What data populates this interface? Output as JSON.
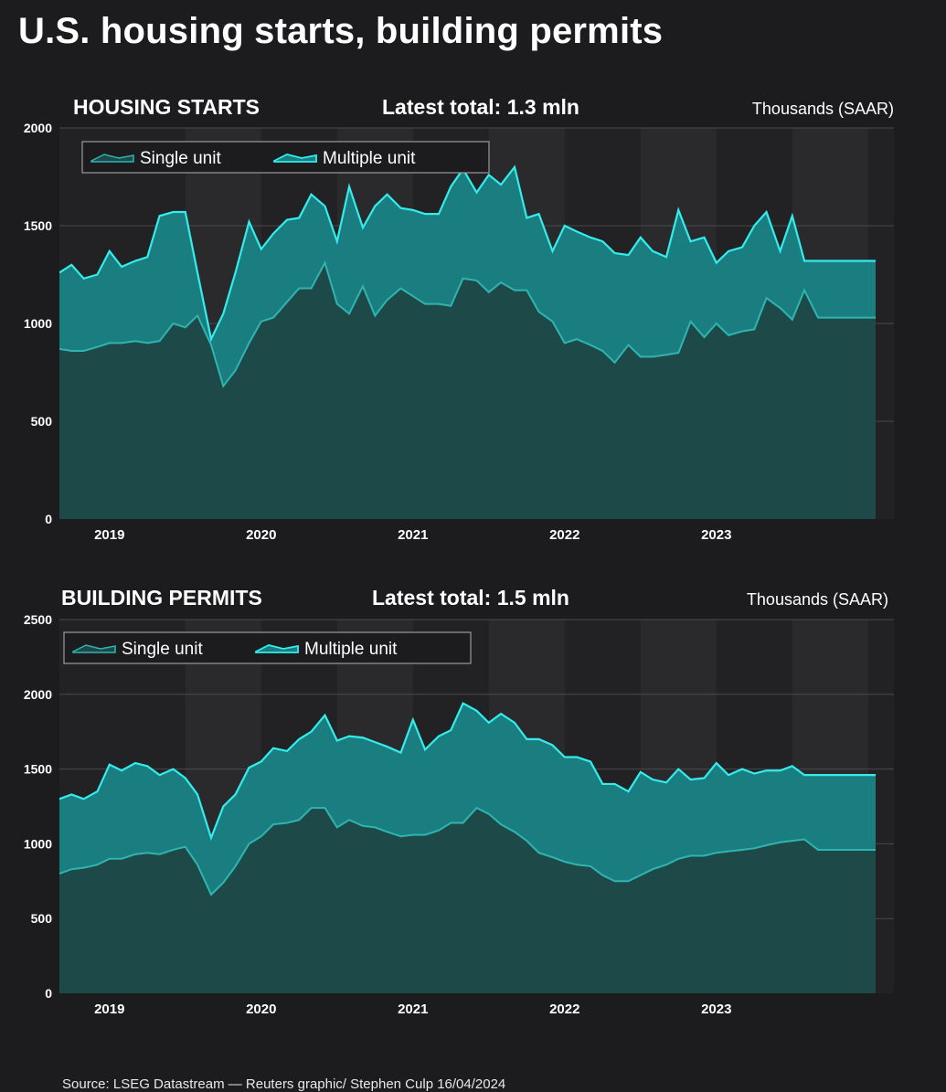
{
  "title": "U.S. housing starts, building permits",
  "source": "Source: LSEG Datastream — Reuters graphic/ Stephen Culp 16/04/2024",
  "colors": {
    "background": "#1c1c1e",
    "single_fill": "#1d4a49",
    "single_line": "#2fb5b0",
    "multiple_fill": "#1a7d80",
    "multiple_line": "#34ecec"
  },
  "chart_data": [
    {
      "type": "area",
      "title": "HOUSING STARTS",
      "subtitle": "Latest total: 1.3 mln",
      "unit_label": "Thousands (SAAR)",
      "ylim": [
        0,
        2000
      ],
      "yticks": [
        "0",
        "500",
        "1000",
        "1500",
        "2000"
      ],
      "x_tick_labels": [
        "2019",
        "2020",
        "2021",
        "2022",
        "2023"
      ],
      "x_range": [
        2018.67,
        2024.17
      ],
      "legend_position": "top-left",
      "grid": true,
      "x": [
        2018.67,
        2018.75,
        2018.83,
        2018.92,
        2019.0,
        2019.08,
        2019.17,
        2019.25,
        2019.33,
        2019.42,
        2019.5,
        2019.58,
        2019.67,
        2019.75,
        2019.83,
        2019.92,
        2020.0,
        2020.08,
        2020.17,
        2020.25,
        2020.33,
        2020.42,
        2020.5,
        2020.58,
        2020.67,
        2020.75,
        2020.83,
        2020.92,
        2021.0,
        2021.08,
        2021.17,
        2021.25,
        2021.33,
        2021.42,
        2021.5,
        2021.58,
        2021.67,
        2021.75,
        2021.83,
        2021.92,
        2022.0,
        2022.08,
        2022.17,
        2022.25,
        2022.33,
        2022.42,
        2022.5,
        2022.58,
        2022.67,
        2022.75,
        2022.83,
        2022.92,
        2023.0,
        2023.08,
        2023.17,
        2023.25,
        2023.33,
        2023.42,
        2023.5,
        2023.58,
        2023.67,
        2023.75,
        2023.83,
        2023.92,
        2024.0,
        2024.08,
        2024.17
      ],
      "series": [
        {
          "name": "Single unit",
          "values": [
            870,
            860,
            860,
            880,
            900,
            900,
            910,
            900,
            910,
            1000,
            980,
            1040,
            890,
            680,
            760,
            900,
            1010,
            1030,
            1110,
            1180,
            1180,
            1310,
            1100,
            1050,
            1190,
            1040,
            1120,
            1180,
            1140,
            1100,
            1100,
            1090,
            1230,
            1220,
            1160,
            1210,
            1170,
            1170,
            1060,
            1010,
            900,
            920,
            890,
            860,
            800,
            890,
            830,
            830,
            840,
            850,
            1010,
            930,
            1000,
            940,
            960,
            970,
            1130,
            1080,
            1020,
            1170,
            1030,
            1030,
            1030,
            1030,
            1030,
            1030,
            1030
          ]
        },
        {
          "name": "Multiple unit",
          "values": [
            1260,
            1300,
            1230,
            1250,
            1370,
            1290,
            1320,
            1340,
            1550,
            1570,
            1570,
            1260,
            920,
            1050,
            1260,
            1520,
            1380,
            1460,
            1530,
            1540,
            1660,
            1600,
            1420,
            1700,
            1490,
            1600,
            1660,
            1590,
            1580,
            1560,
            1560,
            1700,
            1790,
            1670,
            1760,
            1710,
            1800,
            1540,
            1560,
            1370,
            1500,
            1470,
            1440,
            1420,
            1360,
            1350,
            1440,
            1370,
            1340,
            1580,
            1420,
            1440,
            1310,
            1370,
            1390,
            1500,
            1570,
            1370,
            1550,
            1320,
            1320,
            1320,
            1320,
            1320,
            1320,
            1320,
            1320
          ]
        }
      ]
    },
    {
      "type": "area",
      "title": "BUILDING PERMITS",
      "subtitle": "Latest total: 1.5 mln",
      "unit_label": "Thousands (SAAR)",
      "ylim": [
        0,
        2500
      ],
      "yticks": [
        "0",
        "500",
        "1000",
        "1500",
        "2000",
        "2500"
      ],
      "x_tick_labels": [
        "2019",
        "2020",
        "2021",
        "2022",
        "2023"
      ],
      "x_range": [
        2018.67,
        2024.17
      ],
      "legend_position": "top-left",
      "grid": true,
      "x": [
        2018.67,
        2018.75,
        2018.83,
        2018.92,
        2019.0,
        2019.08,
        2019.17,
        2019.25,
        2019.33,
        2019.42,
        2019.5,
        2019.58,
        2019.67,
        2019.75,
        2019.83,
        2019.92,
        2020.0,
        2020.08,
        2020.17,
        2020.25,
        2020.33,
        2020.42,
        2020.5,
        2020.58,
        2020.67,
        2020.75,
        2020.83,
        2020.92,
        2021.0,
        2021.08,
        2021.17,
        2021.25,
        2021.33,
        2021.42,
        2021.5,
        2021.58,
        2021.67,
        2021.75,
        2021.83,
        2021.92,
        2022.0,
        2022.08,
        2022.17,
        2022.25,
        2022.33,
        2022.42,
        2022.5,
        2022.58,
        2022.67,
        2022.75,
        2022.83,
        2022.92,
        2023.0,
        2023.08,
        2023.17,
        2023.25,
        2023.33,
        2023.42,
        2023.5,
        2023.58,
        2023.67,
        2023.75,
        2023.83,
        2023.92,
        2024.0,
        2024.08,
        2024.17
      ],
      "series": [
        {
          "name": "Single unit",
          "values": [
            800,
            830,
            840,
            860,
            900,
            900,
            930,
            940,
            930,
            960,
            980,
            860,
            660,
            740,
            850,
            1000,
            1050,
            1130,
            1140,
            1160,
            1240,
            1240,
            1110,
            1160,
            1120,
            1110,
            1080,
            1050,
            1060,
            1060,
            1090,
            1140,
            1140,
            1240,
            1200,
            1130,
            1080,
            1020,
            940,
            910,
            880,
            860,
            850,
            790,
            750,
            750,
            790,
            830,
            860,
            900,
            920,
            920,
            940,
            950,
            960,
            970,
            990,
            1010,
            1020,
            1030,
            960,
            960,
            960,
            960,
            960,
            960,
            960
          ]
        },
        {
          "name": "Multiple unit",
          "values": [
            1300,
            1330,
            1300,
            1350,
            1530,
            1490,
            1540,
            1520,
            1460,
            1500,
            1440,
            1330,
            1040,
            1250,
            1330,
            1510,
            1550,
            1640,
            1620,
            1700,
            1750,
            1860,
            1690,
            1720,
            1710,
            1680,
            1650,
            1610,
            1830,
            1630,
            1720,
            1760,
            1940,
            1890,
            1810,
            1870,
            1810,
            1700,
            1700,
            1660,
            1580,
            1580,
            1550,
            1400,
            1400,
            1350,
            1480,
            1430,
            1410,
            1500,
            1430,
            1440,
            1540,
            1460,
            1500,
            1470,
            1490,
            1490,
            1520,
            1460,
            1460,
            1460,
            1460,
            1460,
            1460,
            1460,
            1460
          ]
        }
      ]
    }
  ]
}
